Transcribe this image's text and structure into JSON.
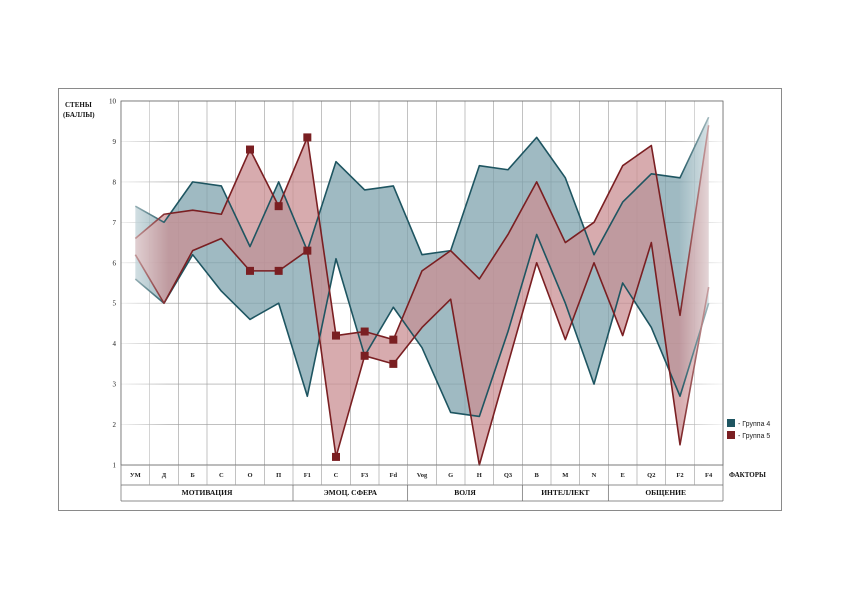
{
  "chart_data": {
    "type": "area",
    "ylabel": "СТЕНЫ (БАЛЛЫ)",
    "ylabel_lines": [
      "СТЕНЫ",
      "(БАЛЛЫ)"
    ],
    "xlabel": "ФАКТОРЫ",
    "ylim": [
      1,
      10
    ],
    "yticks": [
      1,
      2,
      3,
      4,
      5,
      6,
      7,
      8,
      9,
      10
    ],
    "grid": true,
    "legend_position": "right",
    "categories": [
      "УМ",
      "Д",
      "Б",
      "С",
      "О",
      "П",
      "F1",
      "С",
      "F3",
      "Fd",
      "Vog",
      "G",
      "Н",
      "Q3",
      "В",
      "М",
      "N",
      "Е",
      "Q2",
      "F2",
      "F4"
    ],
    "groups": [
      {
        "name": "МОТИВАЦИЯ",
        "from": 0,
        "to": 6
      },
      {
        "name": "ЭМОЦ. СФЕРА",
        "from": 6,
        "to": 10
      },
      {
        "name": "ВОЛЯ",
        "from": 10,
        "to": 14
      },
      {
        "name": "ИНТЕЛЛЕКТ",
        "from": 14,
        "to": 17
      },
      {
        "name": "ОБЩЕНИЕ",
        "from": 17,
        "to": 21
      }
    ],
    "series": [
      {
        "name": "- Группа 4",
        "color": "#1e5561",
        "fill": "#7fa3ae",
        "upper": [
          7.4,
          7.0,
          8.0,
          7.9,
          6.4,
          8.0,
          6.3,
          8.5,
          7.8,
          7.9,
          6.2,
          6.3,
          8.4,
          8.3,
          9.1,
          8.1,
          6.2,
          7.5,
          8.2,
          8.1,
          9.6
        ],
        "lower": [
          5.6,
          5.0,
          6.2,
          5.3,
          4.6,
          5.0,
          2.7,
          6.1,
          3.7,
          4.9,
          3.9,
          2.3,
          2.2,
          4.3,
          6.7,
          5.0,
          3.0,
          5.5,
          4.4,
          2.7,
          5.0
        ]
      },
      {
        "name": "- Группа 5",
        "color": "#7a1f22",
        "fill": "#c98f93",
        "upper": [
          6.6,
          7.2,
          7.3,
          7.2,
          8.8,
          7.4,
          9.1,
          4.2,
          4.3,
          4.1,
          5.8,
          6.3,
          5.6,
          6.7,
          8.0,
          6.5,
          7.0,
          8.4,
          8.9,
          4.7,
          9.4
        ],
        "lower": [
          6.2,
          5.0,
          6.3,
          6.6,
          5.8,
          5.8,
          6.3,
          1.2,
          3.7,
          3.5,
          4.4,
          5.1,
          1.0,
          3.5,
          6.0,
          4.1,
          6.0,
          4.2,
          6.5,
          1.5,
          5.4
        ],
        "markers": [
          4,
          5,
          6,
          7,
          8,
          9
        ]
      }
    ]
  }
}
